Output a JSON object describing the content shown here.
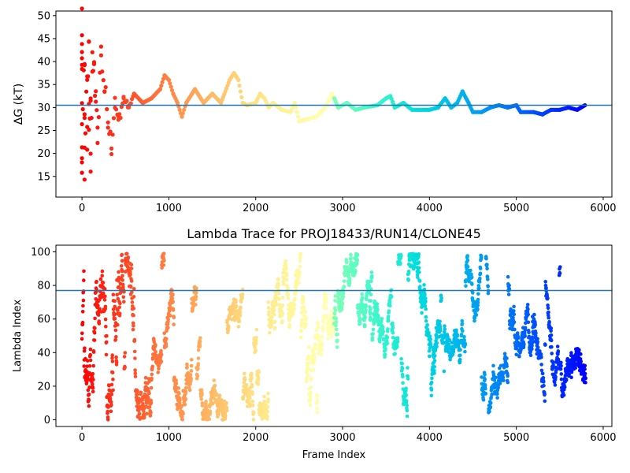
{
  "chart_data": [
    {
      "type": "scatter",
      "title": "",
      "xlabel": "",
      "ylabel": "ΔG (kT)",
      "xlim": [
        -300,
        6100
      ],
      "ylim": [
        10.5,
        51
      ],
      "xticks": [
        0,
        1000,
        2000,
        3000,
        4000,
        5000,
        6000
      ],
      "yticks": [
        15,
        20,
        25,
        30,
        35,
        40,
        45,
        50
      ],
      "hline": 30.5,
      "hline_color": "#1f77b4",
      "colormap": "rainbow (red at frame 0 → violet at last frame)",
      "grid": false,
      "n_frames": 5800,
      "trace_points": [
        [
          0,
          50
        ],
        [
          0,
          20
        ],
        [
          0,
          14
        ],
        [
          0,
          44
        ],
        [
          0,
          40
        ],
        [
          0,
          36
        ],
        [
          0,
          28
        ],
        [
          30,
          42
        ],
        [
          30,
          25
        ],
        [
          30,
          18
        ],
        [
          60,
          38
        ],
        [
          60,
          22
        ],
        [
          80,
          45
        ],
        [
          80,
          28
        ],
        [
          100,
          33
        ],
        [
          100,
          16
        ],
        [
          120,
          40
        ],
        [
          140,
          37
        ],
        [
          160,
          31
        ],
        [
          180,
          25
        ],
        [
          220,
          42
        ],
        [
          260,
          34
        ],
        [
          300,
          28
        ],
        [
          340,
          22
        ],
        [
          380,
          31
        ],
        [
          420,
          27
        ],
        [
          480,
          32
        ],
        [
          540,
          30
        ],
        [
          600,
          33
        ],
        [
          700,
          31
        ],
        [
          800,
          32
        ],
        [
          900,
          34
        ],
        [
          950,
          37
        ],
        [
          1000,
          36
        ],
        [
          1050,
          33
        ],
        [
          1100,
          31
        ],
        [
          1150,
          28
        ],
        [
          1200,
          31
        ],
        [
          1300,
          34
        ],
        [
          1400,
          31
        ],
        [
          1500,
          33
        ],
        [
          1600,
          31
        ],
        [
          1700,
          36
        ],
        [
          1750,
          37.5
        ],
        [
          1800,
          36
        ],
        [
          1850,
          31
        ],
        [
          1900,
          30.5
        ],
        [
          2000,
          31
        ],
        [
          2050,
          33
        ],
        [
          2100,
          32
        ],
        [
          2150,
          30
        ],
        [
          2200,
          31
        ],
        [
          2300,
          29.5
        ],
        [
          2400,
          29
        ],
        [
          2450,
          31
        ],
        [
          2500,
          27
        ],
        [
          2600,
          27.5
        ],
        [
          2700,
          28
        ],
        [
          2800,
          30
        ],
        [
          2880,
          33
        ],
        [
          2950,
          30
        ],
        [
          3050,
          31
        ],
        [
          3150,
          29.5
        ],
        [
          3250,
          30
        ],
        [
          3400,
          30.5
        ],
        [
          3500,
          32
        ],
        [
          3550,
          32.5
        ],
        [
          3600,
          30
        ],
        [
          3700,
          31
        ],
        [
          3800,
          29.5
        ],
        [
          3900,
          29.5
        ],
        [
          4000,
          29.5
        ],
        [
          4100,
          30
        ],
        [
          4180,
          32
        ],
        [
          4250,
          30
        ],
        [
          4320,
          31
        ],
        [
          4380,
          33.5
        ],
        [
          4450,
          31
        ],
        [
          4500,
          29
        ],
        [
          4600,
          29
        ],
        [
          4700,
          30
        ],
        [
          4800,
          30.5
        ],
        [
          4900,
          30
        ],
        [
          5000,
          30.5
        ],
        [
          5050,
          29
        ],
        [
          5200,
          29
        ],
        [
          5300,
          28.5
        ],
        [
          5400,
          29.5
        ],
        [
          5500,
          29.5
        ],
        [
          5600,
          30
        ],
        [
          5700,
          29.5
        ],
        [
          5790,
          30.5
        ]
      ]
    },
    {
      "type": "scatter",
      "title": "Lambda Trace for PROJ18433/RUN14/CLONE45",
      "xlabel": "Frame Index",
      "ylabel": "Lambda Index",
      "xlim": [
        -300,
        6100
      ],
      "ylim": [
        -4,
        104
      ],
      "xticks": [
        0,
        1000,
        2000,
        3000,
        4000,
        5000,
        6000
      ],
      "yticks": [
        0,
        20,
        40,
        60,
        80,
        100
      ],
      "hline": 77,
      "hline_color": "#1f77b4",
      "colormap": "rainbow (red at frame 0 → violet at last frame)",
      "grid": false,
      "n_frames": 5800,
      "lambda_range": [
        0,
        99
      ]
    }
  ]
}
